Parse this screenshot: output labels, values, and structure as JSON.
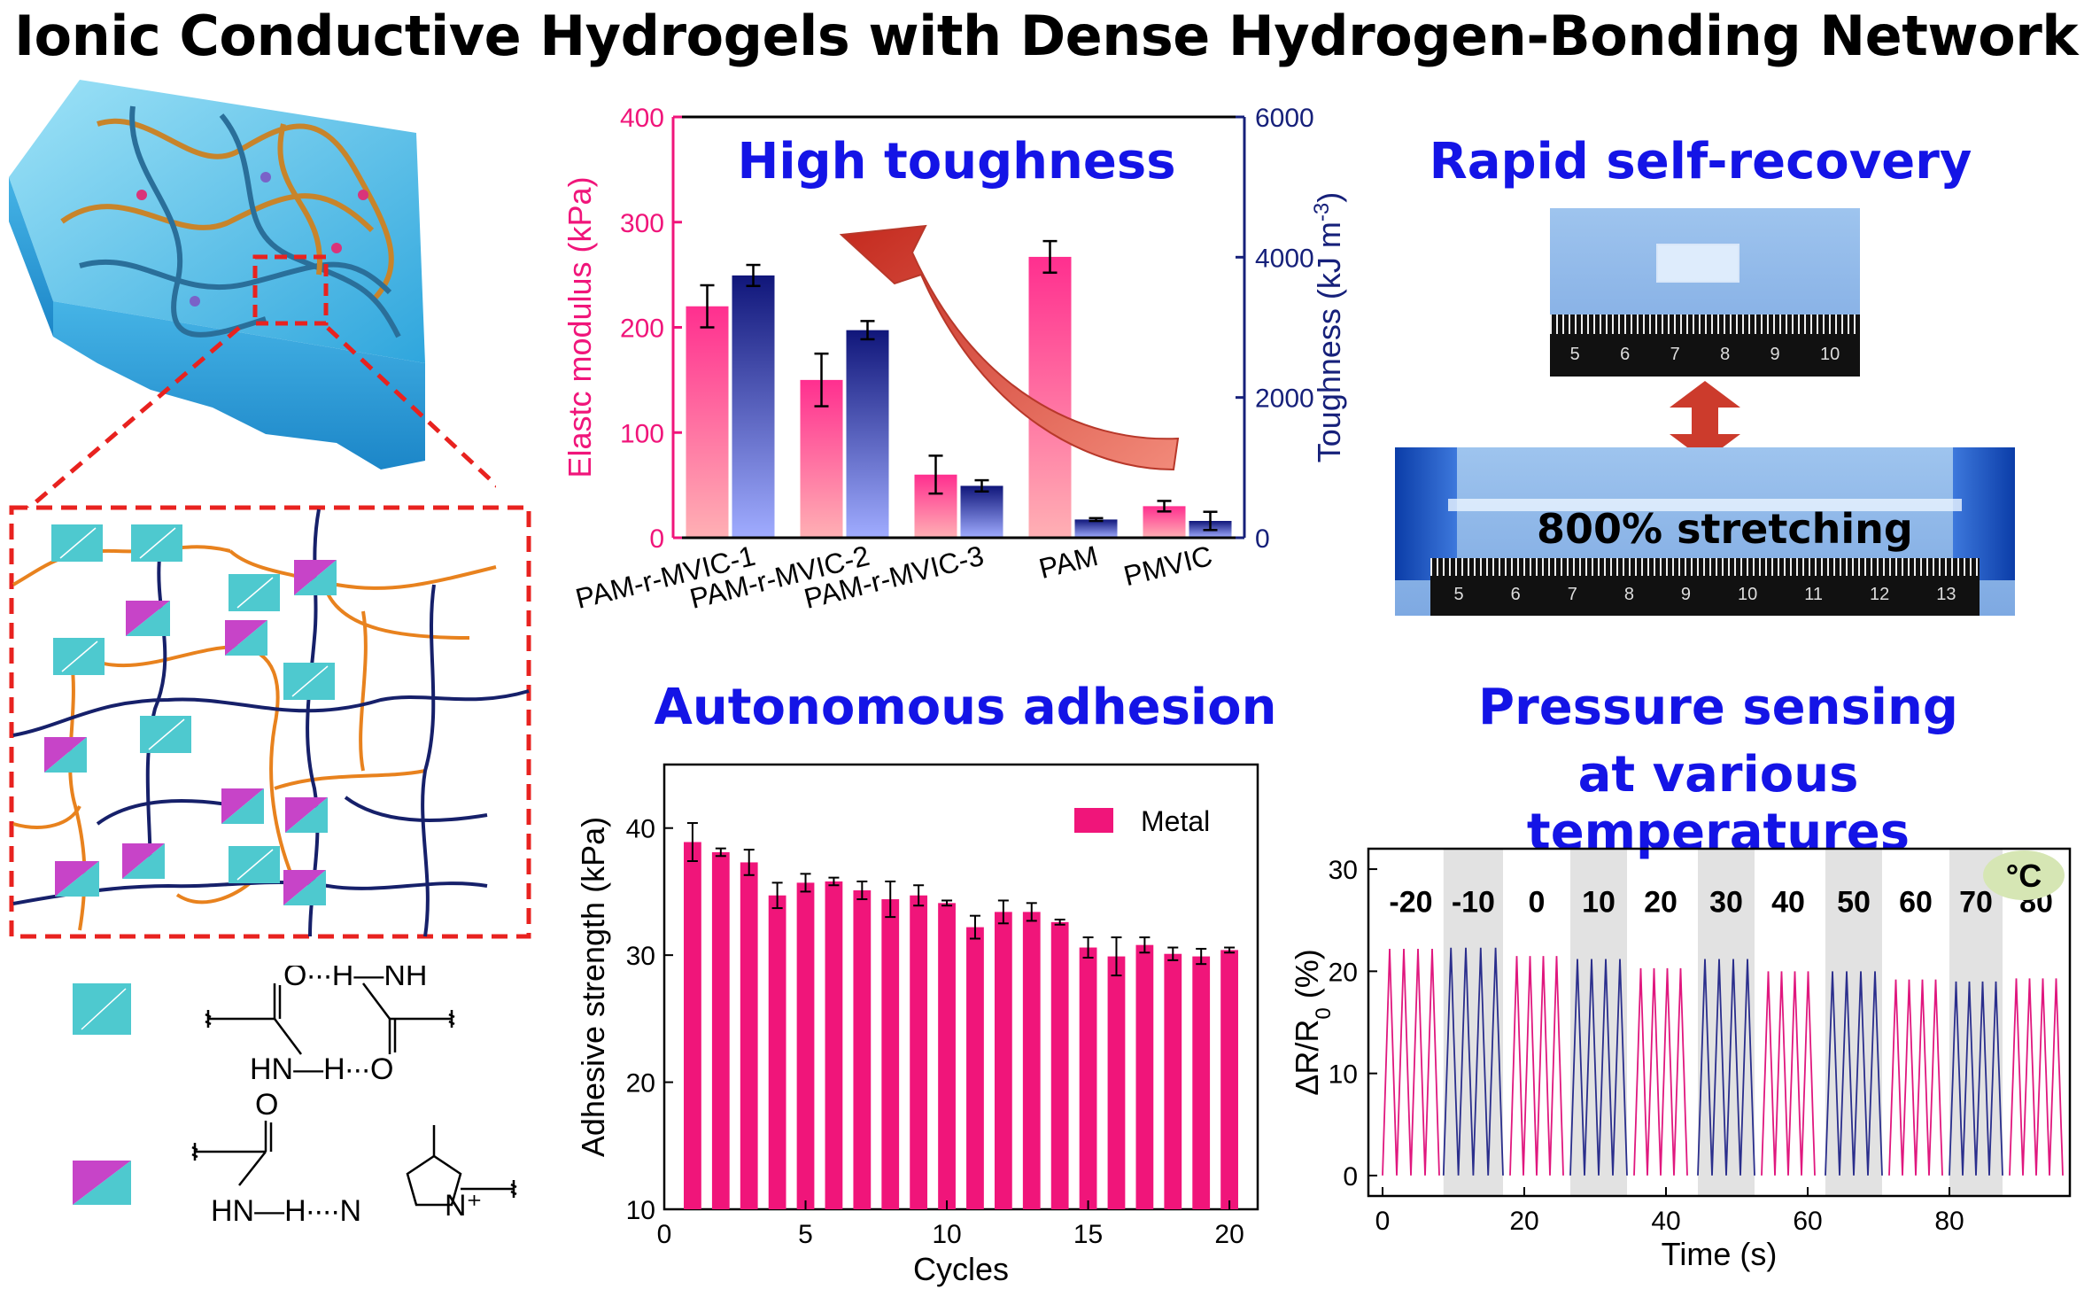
{
  "title": "Ionic Conductive Hydrogels with Dense Hydrogen-Bonding Network",
  "sections": {
    "toughness": "High toughness",
    "recovery": "Rapid self-recovery",
    "adhesion": "Autonomous adhesion",
    "sensing_line1": "Pressure sensing",
    "sensing_line2": "at various temperatures"
  },
  "photo": {
    "stretch_label": "800% stretching",
    "ruler_top_numbers": [
      "5",
      "6",
      "7",
      "8",
      "9",
      "10"
    ],
    "ruler_bottom_numbers": [
      "5",
      "6",
      "7",
      "8",
      "9",
      "10",
      "11",
      "12",
      "13"
    ]
  },
  "chem": {
    "bond1_top": "O∙∙∙H—NH",
    "bond1_bottom": "HN—H∙∙∙O",
    "bond2_o": "O",
    "bond2_hn": "HN—H∙∙∙∙N",
    "bond2_nplus": "N⁺"
  },
  "colors": {
    "pink": "#f0157a",
    "navy": "#16207a",
    "cyan": "#4ec9cf",
    "magenta": "#c744c8",
    "title_blue": "#1414e6"
  },
  "chart_data": [
    {
      "type": "bar",
      "categories": [
        "PAM-r-MVIC-1",
        "PAM-r-MVIC-2",
        "PAM-r-MVIC-3",
        "PAM",
        "PMVIC"
      ],
      "series": [
        {
          "axis": "left",
          "values": [
            220,
            150,
            60,
            267,
            30
          ],
          "errors": [
            20,
            25,
            18,
            15,
            5
          ]
        },
        {
          "axis": "right",
          "values": [
            3740,
            2960,
            740,
            260,
            240
          ],
          "errors": [
            150,
            130,
            80,
            20,
            130
          ]
        }
      ],
      "ylabel": "Elastc modulus (kPa)",
      "ylabel_right_main": "Toughness (kJ m",
      "ylabel_right_sup": "-3",
      "ylabel_right_end": ")",
      "ylim": [
        0,
        400
      ],
      "ylim_right": [
        0,
        6000
      ],
      "yticks": [
        "0",
        "100",
        "200",
        "300",
        "400"
      ],
      "yticks_right": [
        "0",
        "2000",
        "4000",
        "6000"
      ]
    },
    {
      "type": "bar",
      "x": [
        1,
        2,
        3,
        4,
        5,
        6,
        7,
        8,
        9,
        10,
        11,
        12,
        13,
        14,
        15,
        16,
        17,
        18,
        19,
        20
      ],
      "series": [
        {
          "name": "Metal",
          "values": [
            38.9,
            38.1,
            37.3,
            34.7,
            35.7,
            35.8,
            35.1,
            34.4,
            34.7,
            34.1,
            32.2,
            33.4,
            33.4,
            32.6,
            30.6,
            29.9,
            30.8,
            30.1,
            29.9,
            30.4
          ],
          "errors": [
            1.5,
            0.3,
            1.0,
            1.0,
            0.7,
            0.3,
            0.7,
            1.4,
            0.8,
            0.2,
            0.9,
            0.9,
            0.7,
            0.2,
            0.8,
            1.5,
            0.6,
            0.5,
            0.6,
            0.2
          ]
        }
      ],
      "xlabel": "Cycles",
      "ylabel": "Adhesive strength (kPa)",
      "xlim": [
        0,
        21
      ],
      "ylim": [
        10,
        45
      ],
      "xticks": [
        "0",
        "5",
        "10",
        "15",
        "20"
      ],
      "yticks": [
        "10",
        "20",
        "30",
        "40"
      ],
      "legend": "top-right"
    },
    {
      "type": "line",
      "xlabel": "Time (s)",
      "ylabel_main": "ΔR/R",
      "ylabel_sub": "0",
      "ylabel_end": " (%)",
      "xlim": [
        -2,
        97
      ],
      "ylim": [
        -2,
        32
      ],
      "xticks": [
        "0",
        "20",
        "40",
        "60",
        "80"
      ],
      "yticks": [
        "0",
        "10",
        "20",
        "30"
      ],
      "unit_badge": "°C",
      "segments": [
        {
          "label": "-20",
          "t0": 0,
          "t1": 8,
          "peak": 22.2,
          "shaded": false
        },
        {
          "label": "-10",
          "t0": 8.6,
          "t1": 17,
          "peak": 22.3,
          "shaded": true
        },
        {
          "label": "0",
          "t0": 18,
          "t1": 25.5,
          "peak": 21.5,
          "shaded": false
        },
        {
          "label": "10",
          "t0": 26.5,
          "t1": 34.5,
          "peak": 21.2,
          "shaded": true
        },
        {
          "label": "20",
          "t0": 35.5,
          "t1": 43,
          "peak": 20.3,
          "shaded": false
        },
        {
          "label": "30",
          "t0": 44.5,
          "t1": 52.5,
          "peak": 21.2,
          "shaded": true
        },
        {
          "label": "40",
          "t0": 53.5,
          "t1": 61,
          "peak": 20.0,
          "shaded": false
        },
        {
          "label": "50",
          "t0": 62.5,
          "t1": 70.5,
          "peak": 20.0,
          "shaded": true
        },
        {
          "label": "60",
          "t0": 71.5,
          "t1": 79,
          "peak": 19.2,
          "shaded": false
        },
        {
          "label": "70",
          "t0": 80,
          "t1": 87.5,
          "peak": 19.0,
          "shaded": true
        },
        {
          "label": "80",
          "t0": 88.5,
          "t1": 96,
          "peak": 19.3,
          "shaded": false
        }
      ]
    }
  ]
}
